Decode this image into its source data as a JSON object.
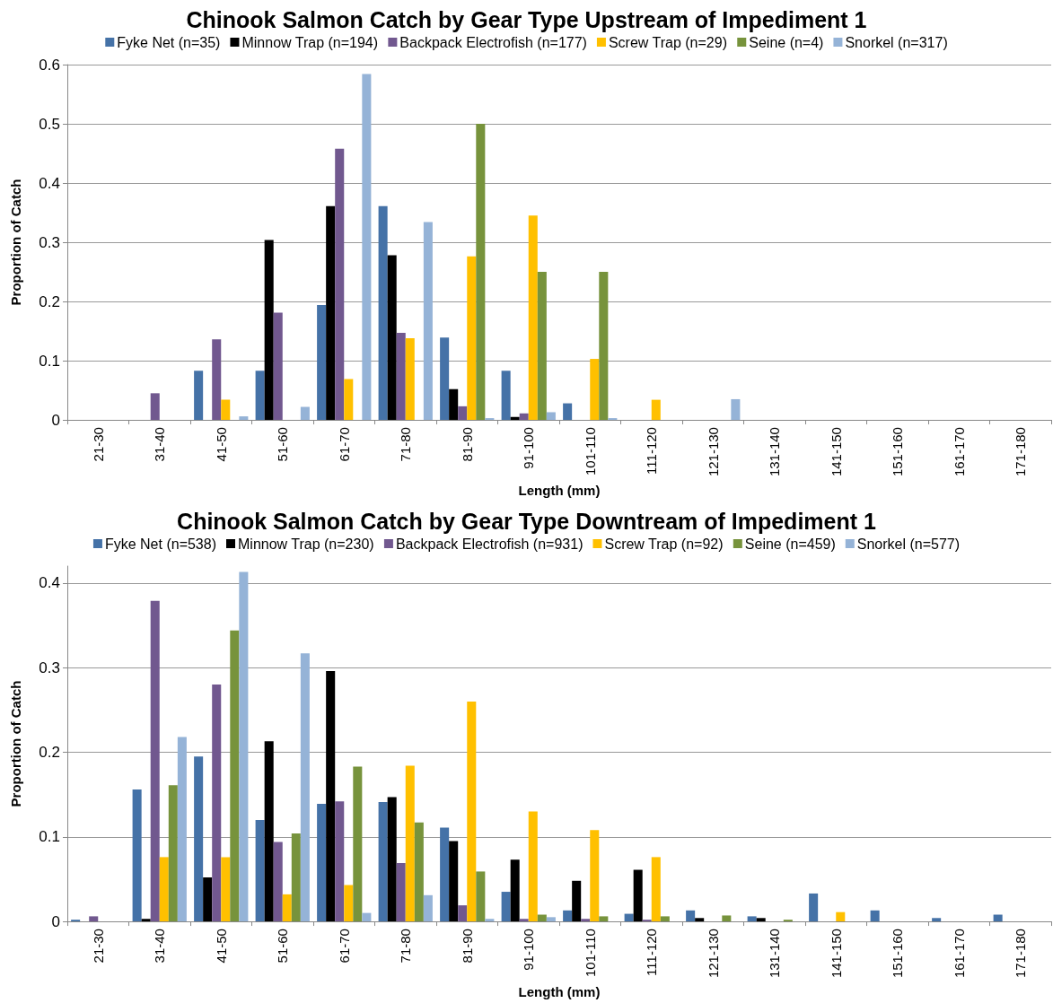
{
  "chart_data": [
    {
      "type": "bar",
      "title": "Chinook Salmon Catch by Gear Type Upstream of Impediment 1",
      "xlabel": "Length (mm)",
      "ylabel": "Proportion of Catch",
      "categories": [
        "21-30",
        "31-40",
        "41-50",
        "51-60",
        "61-70",
        "71-80",
        "81-90",
        "91-100",
        "101-110",
        "111-120",
        "121-130",
        "131-140",
        "141-150",
        "151-160",
        "161-170",
        "171-180"
      ],
      "series": [
        {
          "name": "Fyke Net (n=35)",
          "color": "#4572a7",
          "values": [
            0,
            0,
            0.083,
            0.083,
            0.194,
            0.361,
            0.139,
            0.083,
            0.028,
            0,
            0,
            0,
            0,
            0,
            0,
            0
          ]
        },
        {
          "name": "Minnow Trap (n=194)",
          "color": "#000000",
          "values": [
            0,
            0,
            0,
            0.304,
            0.361,
            0.278,
            0.052,
            0.005,
            0,
            0,
            0,
            0,
            0,
            0,
            0,
            0
          ]
        },
        {
          "name": "Backpack Electrofish (n=177)",
          "color": "#71588f",
          "values": [
            0,
            0.045,
            0.136,
            0.181,
            0.458,
            0.147,
            0.023,
            0.011,
            0,
            0,
            0,
            0,
            0,
            0,
            0,
            0
          ]
        },
        {
          "name": "Screw Trap (n=29)",
          "color": "#ffc000",
          "values": [
            0,
            0,
            0.034,
            0,
            0.069,
            0.138,
            0.276,
            0.345,
            0.103,
            0.034,
            0,
            0,
            0,
            0,
            0,
            0
          ]
        },
        {
          "name": "Seine (n=4)",
          "color": "#77933c",
          "values": [
            0,
            0,
            0,
            0,
            0,
            0,
            0.5,
            0.25,
            0.25,
            0,
            0,
            0,
            0,
            0,
            0,
            0
          ]
        },
        {
          "name": "Snorkel (n=317)",
          "color": "#95b3d7",
          "values": [
            0,
            0,
            0.006,
            0.022,
            0.584,
            0.334,
            0.003,
            0.013,
            0.003,
            0,
            0.035,
            0,
            0,
            0,
            0,
            0
          ]
        }
      ],
      "ylim": [
        0,
        0.6
      ],
      "yticks": [
        0,
        0.1,
        0.2,
        0.3,
        0.4,
        0.5,
        0.6
      ],
      "grid": "y",
      "legend": "top"
    },
    {
      "type": "bar",
      "title": "Chinook Salmon Catch by Gear Type Downtream of Impediment 1",
      "xlabel": "Length (mm)",
      "ylabel": "Proportion of Catch",
      "categories": [
        "21-30",
        "31-40",
        "41-50",
        "51-60",
        "61-70",
        "71-80",
        "81-90",
        "91-100",
        "101-110",
        "111-120",
        "121-130",
        "131-140",
        "141-150",
        "151-160",
        "161-170",
        "171-180"
      ],
      "series": [
        {
          "name": "Fyke Net (n=538)",
          "color": "#4572a7",
          "values": [
            0.002,
            0.156,
            0.195,
            0.12,
            0.139,
            0.141,
            0.111,
            0.035,
            0.013,
            0.009,
            0.013,
            0.006,
            0.033,
            0.013,
            0.004,
            0.008
          ]
        },
        {
          "name": "Minnow Trap (n=230)",
          "color": "#000000",
          "values": [
            0,
            0.003,
            0.052,
            0.213,
            0.296,
            0.147,
            0.095,
            0.073,
            0.048,
            0.061,
            0.004,
            0.004,
            0,
            0,
            0,
            0
          ]
        },
        {
          "name": "Backpack Electrofish (n=931)",
          "color": "#71588f",
          "values": [
            0.006,
            0.379,
            0.28,
            0.094,
            0.142,
            0.069,
            0.019,
            0.003,
            0.003,
            0.002,
            0,
            0,
            0,
            0,
            0,
            0
          ]
        },
        {
          "name": "Screw Trap (n=92)",
          "color": "#ffc000",
          "values": [
            0,
            0.076,
            0.076,
            0.032,
            0.043,
            0.184,
            0.26,
            0.13,
            0.108,
            0.076,
            0,
            0,
            0.011,
            0,
            0,
            0
          ]
        },
        {
          "name": "Seine (n=459)",
          "color": "#77933c",
          "values": [
            0,
            0.161,
            0.344,
            0.104,
            0.183,
            0.117,
            0.059,
            0.008,
            0.006,
            0.006,
            0.007,
            0.002,
            0,
            0,
            0,
            0
          ]
        },
        {
          "name": "Snorkel (n=577)",
          "color": "#95b3d7",
          "values": [
            0,
            0.218,
            0.413,
            0.317,
            0.01,
            0.031,
            0.003,
            0.005,
            0,
            0,
            0,
            0,
            0,
            0,
            0,
            0
          ]
        }
      ],
      "ylim": [
        0,
        0.42
      ],
      "yticks": [
        0,
        0.1,
        0.2,
        0.3,
        0.4
      ],
      "grid": "y",
      "legend": "top"
    }
  ]
}
